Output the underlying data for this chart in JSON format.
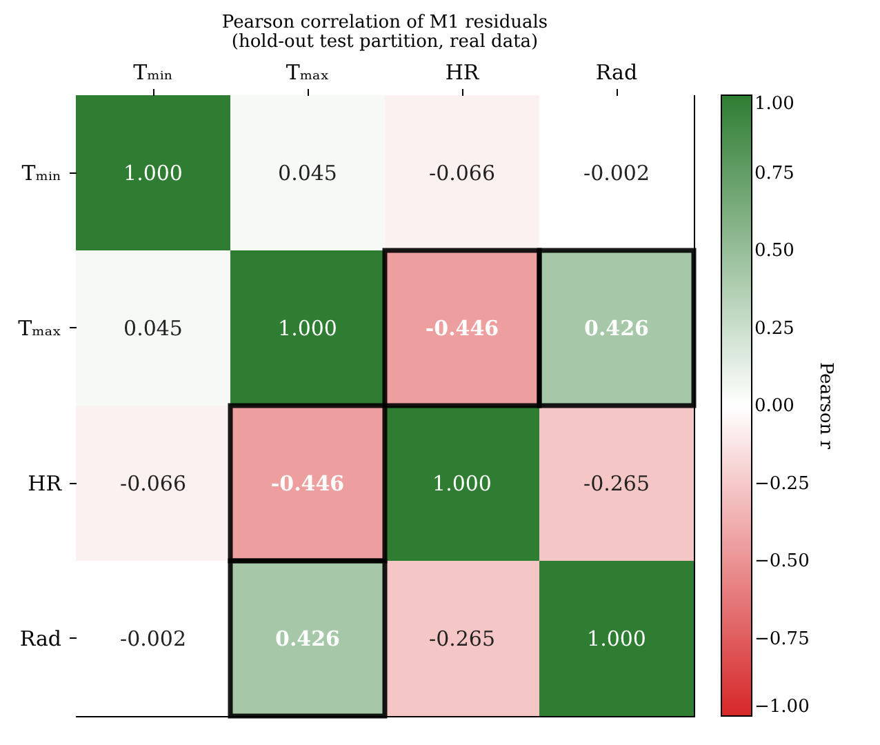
{
  "chart_data": {
    "type": "heatmap",
    "title": "Pearson correlation of M1 residuals",
    "subtitle": "(hold-out test partition, real data)",
    "categories": [
      "Tₘᵢₙ",
      "Tₘₐₓ",
      "HR",
      "Rad"
    ],
    "y_categories": [
      "Tₘᵢₙ",
      "Tₘₐₓ",
      "HR",
      "Rad"
    ],
    "cells": [
      [
        1.0,
        0.045,
        -0.066,
        -0.002
      ],
      [
        0.045,
        1.0,
        -0.446,
        0.426
      ],
      [
        -0.066,
        -0.446,
        1.0,
        -0.265
      ],
      [
        -0.002,
        0.426,
        -0.265,
        1.0
      ]
    ],
    "cell_labels": [
      [
        "1.000",
        "0.045",
        "-0.066",
        "-0.002"
      ],
      [
        "0.045",
        "1.000",
        "-0.446",
        "0.426"
      ],
      [
        "-0.066",
        "-0.446",
        "1.000",
        "-0.265"
      ],
      [
        "-0.002",
        "0.426",
        "-0.265",
        "1.000"
      ]
    ],
    "clabel": "Pearson r",
    "clim": [
      -1,
      1
    ],
    "cticks": [
      {
        "value": -1,
        "label": "−1.00"
      },
      {
        "value": -0.75,
        "label": "−0.75"
      },
      {
        "value": -0.5,
        "label": "−0.50"
      },
      {
        "value": -0.25,
        "label": "−0.25"
      },
      {
        "value": 0,
        "label": "0.00"
      },
      {
        "value": 0.25,
        "label": "0.25"
      },
      {
        "value": 0.5,
        "label": "0.50"
      },
      {
        "value": 0.75,
        "label": "0.75"
      },
      {
        "value": 1,
        "label": "1.00"
      }
    ]
  }
}
